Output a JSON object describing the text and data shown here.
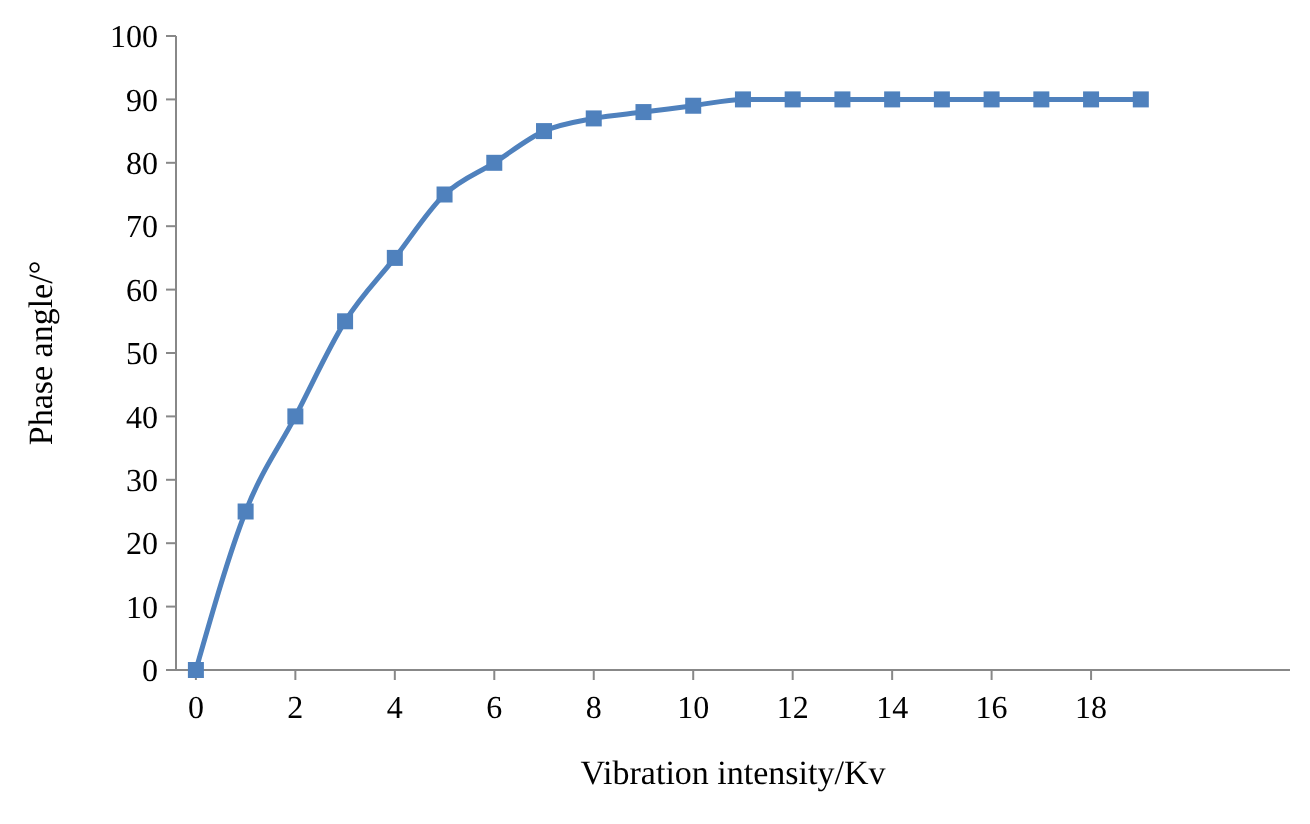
{
  "chart_data": {
    "type": "line",
    "xlabel": "Vibration intensity/Kv",
    "ylabel": "Phase angle/°",
    "x": [
      0,
      1,
      2,
      3,
      4,
      5,
      6,
      7,
      8,
      9,
      10,
      11,
      12,
      13,
      14,
      15,
      16,
      17,
      18,
      19
    ],
    "series": [
      {
        "color": "#4f81bd",
        "values": [
          0,
          25,
          40,
          55,
          65,
          75,
          80,
          85,
          87,
          88,
          89,
          90,
          90,
          90,
          90,
          90,
          90,
          90,
          90,
          90
        ]
      }
    ],
    "xlim": [
      -0.4,
      22
    ],
    "xticks": [
      0,
      2,
      4,
      6,
      8,
      10,
      12,
      14,
      16,
      18
    ],
    "ylim": [
      0,
      100
    ],
    "yticks": [
      0,
      10,
      20,
      30,
      40,
      50,
      60,
      70,
      80,
      90,
      100
    ],
    "marker": "square",
    "line_style": "solid"
  }
}
